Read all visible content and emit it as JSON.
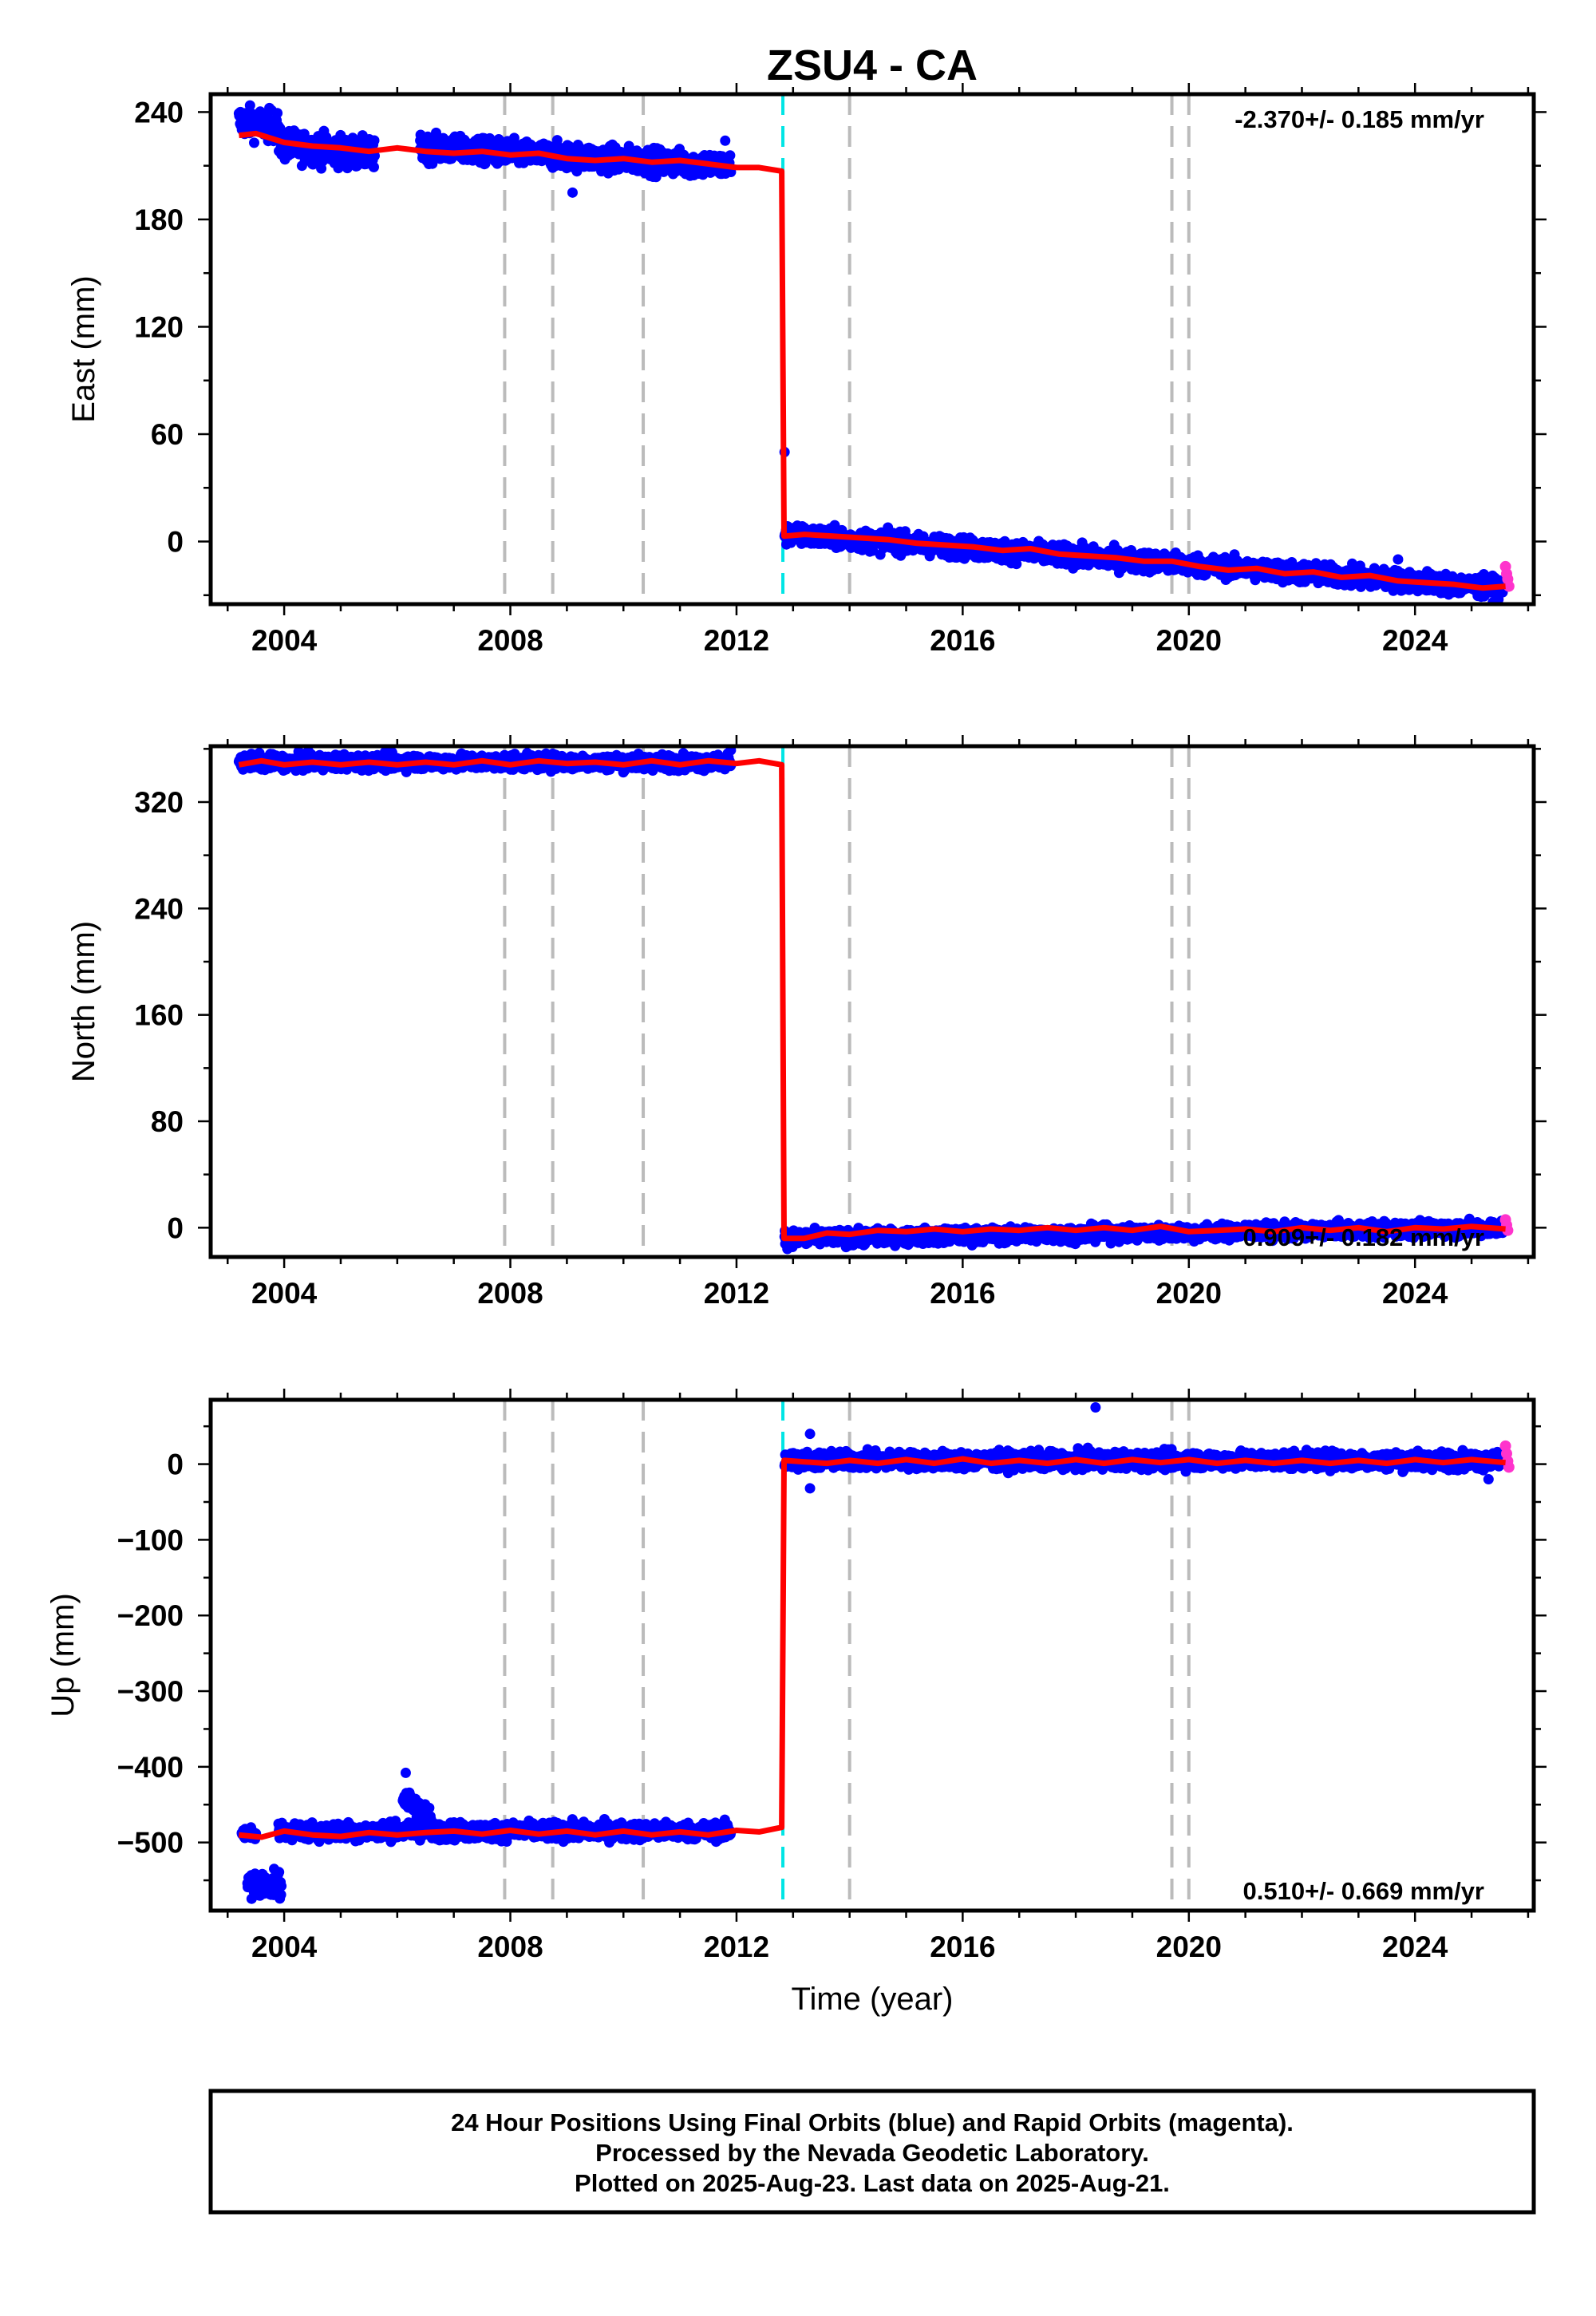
{
  "chart_data": {
    "title": "ZSU4 - CA",
    "type": "scatter",
    "xlabel": "Time (year)",
    "xlim": [
      2002.7,
      2026.1
    ],
    "xticks": [
      2004,
      2008,
      2012,
      2016,
      2020,
      2024
    ],
    "equipment_changes": [
      2007.9,
      2008.75,
      2010.35,
      2014.0,
      2019.7,
      2020.0
    ],
    "earthquake": 2012.82,
    "colors": {
      "final": "#0000ff",
      "rapid": "#ff33cc",
      "model": "#ff0000",
      "equipment": "#bbbbbb",
      "earthquake": "#00e5e5"
    },
    "panels": [
      {
        "id": "east",
        "ylabel": "East (mm)",
        "ylim": [
          -35,
          250
        ],
        "yticks": [
          0,
          60,
          120,
          180,
          240
        ],
        "rate": "-2.370+/- 0.185 mm/yr",
        "rate_position": "top-right",
        "model": [
          [
            2003.2,
            227
          ],
          [
            2003.5,
            228
          ],
          [
            2004.0,
            223
          ],
          [
            2004.5,
            221
          ],
          [
            2005.0,
            220
          ],
          [
            2005.5,
            218
          ],
          [
            2006.0,
            220
          ],
          [
            2006.5,
            218
          ],
          [
            2007.0,
            217
          ],
          [
            2007.5,
            218
          ],
          [
            2008.0,
            216
          ],
          [
            2008.5,
            217
          ],
          [
            2009.0,
            214
          ],
          [
            2009.5,
            213
          ],
          [
            2010.0,
            214
          ],
          [
            2010.5,
            212
          ],
          [
            2011.0,
            213
          ],
          [
            2011.5,
            211
          ],
          [
            2012.0,
            209
          ],
          [
            2012.4,
            209
          ],
          [
            2012.8,
            207
          ],
          [
            2012.84,
            3
          ],
          [
            2013.2,
            4
          ],
          [
            2013.7,
            3
          ],
          [
            2014.2,
            2
          ],
          [
            2014.7,
            1
          ],
          [
            2015.2,
            -1
          ],
          [
            2015.7,
            -2
          ],
          [
            2016.2,
            -3
          ],
          [
            2016.7,
            -5
          ],
          [
            2017.2,
            -4
          ],
          [
            2017.7,
            -7
          ],
          [
            2018.2,
            -8
          ],
          [
            2018.7,
            -9
          ],
          [
            2019.2,
            -11
          ],
          [
            2019.7,
            -11
          ],
          [
            2020.2,
            -14
          ],
          [
            2020.7,
            -16
          ],
          [
            2021.2,
            -15
          ],
          [
            2021.7,
            -18
          ],
          [
            2022.2,
            -17
          ],
          [
            2022.7,
            -20
          ],
          [
            2023.2,
            -19
          ],
          [
            2023.7,
            -22
          ],
          [
            2024.2,
            -23
          ],
          [
            2024.7,
            -24
          ],
          [
            2025.2,
            -26
          ],
          [
            2025.6,
            -25
          ]
        ],
        "final_segments": [
          {
            "t": [
              2003.2,
              2003.9
            ],
            "start": 235,
            "end": 232,
            "scatter": 6
          },
          {
            "t": [
              2003.9,
              2005.6
            ],
            "start": 222,
            "end": 216,
            "scatter": 6
          },
          {
            "t": [
              2006.4,
              2011.9
            ],
            "start": 220,
            "end": 210,
            "scatter": 5
          },
          {
            "t": [
              2012.85,
              2025.55
            ],
            "start": 4,
            "end": -26,
            "scatter": 4
          }
        ],
        "final_outliers": [
          [
            2009.1,
            195
          ],
          [
            2011.8,
            224
          ],
          [
            2012.85,
            50
          ],
          [
            2023.7,
            -10
          ]
        ],
        "rapid": [
          [
            2025.6,
            -14
          ],
          [
            2025.62,
            -18
          ],
          [
            2025.64,
            -21
          ],
          [
            2025.66,
            -25
          ]
        ]
      },
      {
        "id": "north",
        "ylabel": "North (mm)",
        "ylim": [
          -22,
          362
        ],
        "yticks": [
          0,
          80,
          160,
          240,
          320
        ],
        "rate": "0.909+/- 0.182 mm/yr",
        "rate_position": "bottom-right",
        "model": [
          [
            2003.2,
            348
          ],
          [
            2003.6,
            351
          ],
          [
            2004.0,
            348
          ],
          [
            2004.5,
            350
          ],
          [
            2005.0,
            348
          ],
          [
            2005.5,
            350
          ],
          [
            2006.0,
            348
          ],
          [
            2006.5,
            350
          ],
          [
            2007.0,
            348
          ],
          [
            2007.5,
            351
          ],
          [
            2008.0,
            348
          ],
          [
            2008.5,
            351
          ],
          [
            2009.0,
            349
          ],
          [
            2009.5,
            350
          ],
          [
            2010.0,
            348
          ],
          [
            2010.5,
            351
          ],
          [
            2011.0,
            348
          ],
          [
            2011.5,
            351
          ],
          [
            2012.0,
            349
          ],
          [
            2012.4,
            351
          ],
          [
            2012.8,
            348
          ],
          [
            2012.84,
            -8
          ],
          [
            2013.2,
            -8
          ],
          [
            2013.6,
            -4
          ],
          [
            2014.0,
            -5
          ],
          [
            2014.5,
            -2
          ],
          [
            2015.0,
            -3
          ],
          [
            2015.5,
            -1
          ],
          [
            2016.0,
            -3
          ],
          [
            2016.5,
            -1
          ],
          [
            2017.0,
            -2
          ],
          [
            2017.5,
            0
          ],
          [
            2018.0,
            -2
          ],
          [
            2018.5,
            0
          ],
          [
            2019.0,
            -2
          ],
          [
            2019.5,
            1
          ],
          [
            2020.0,
            -3
          ],
          [
            2020.5,
            -2
          ],
          [
            2021.0,
            -1
          ],
          [
            2021.5,
            -3
          ],
          [
            2022.0,
            0
          ],
          [
            2022.5,
            -2
          ],
          [
            2023.0,
            0
          ],
          [
            2023.5,
            -3
          ],
          [
            2024.0,
            0
          ],
          [
            2024.5,
            -1
          ],
          [
            2025.0,
            1
          ],
          [
            2025.6,
            -1
          ]
        ],
        "final_segments": [
          {
            "t": [
              2003.2,
              2011.9
            ],
            "start": 350,
            "end": 350,
            "scatter": 4
          },
          {
            "t": [
              2012.85,
              2025.55
            ],
            "start": -8,
            "end": 0,
            "scatter": 4
          }
        ],
        "final_outliers": [
          [
            2011.9,
            359
          ],
          [
            2012.9,
            -16
          ]
        ],
        "rapid": [
          [
            2025.6,
            6
          ],
          [
            2025.62,
            2
          ],
          [
            2025.64,
            -2
          ]
        ]
      },
      {
        "id": "up",
        "ylabel": "Up (mm)",
        "ylim": [
          -590,
          85
        ],
        "yticks": [
          0,
          -100,
          -200,
          -300,
          -400,
          -500
        ],
        "rate": "0.510+/- 0.669 mm/yr",
        "rate_position": "bottom-right",
        "model": [
          [
            2003.2,
            -490
          ],
          [
            2003.6,
            -493
          ],
          [
            2004.0,
            -485
          ],
          [
            2004.5,
            -490
          ],
          [
            2005.0,
            -492
          ],
          [
            2005.5,
            -487
          ],
          [
            2006.0,
            -490
          ],
          [
            2006.5,
            -487
          ],
          [
            2007.0,
            -485
          ],
          [
            2007.5,
            -489
          ],
          [
            2008.0,
            -484
          ],
          [
            2008.5,
            -489
          ],
          [
            2009.0,
            -485
          ],
          [
            2009.5,
            -490
          ],
          [
            2010.0,
            -485
          ],
          [
            2010.5,
            -490
          ],
          [
            2011.0,
            -486
          ],
          [
            2011.5,
            -490
          ],
          [
            2012.0,
            -484
          ],
          [
            2012.4,
            -486
          ],
          [
            2012.8,
            -480
          ],
          [
            2012.84,
            5
          ],
          [
            2013.2,
            3
          ],
          [
            2013.6,
            1
          ],
          [
            2014.0,
            5
          ],
          [
            2014.5,
            1
          ],
          [
            2015.0,
            6
          ],
          [
            2015.5,
            1
          ],
          [
            2016.0,
            7
          ],
          [
            2016.5,
            1
          ],
          [
            2017.0,
            5
          ],
          [
            2017.5,
            1
          ],
          [
            2018.0,
            6
          ],
          [
            2018.5,
            1
          ],
          [
            2019.0,
            6
          ],
          [
            2019.5,
            2
          ],
          [
            2020.0,
            6
          ],
          [
            2020.5,
            1
          ],
          [
            2021.0,
            5
          ],
          [
            2021.5,
            1
          ],
          [
            2022.0,
            5
          ],
          [
            2022.5,
            1
          ],
          [
            2023.0,
            5
          ],
          [
            2023.5,
            1
          ],
          [
            2024.0,
            6
          ],
          [
            2024.5,
            2
          ],
          [
            2025.0,
            6
          ],
          [
            2025.6,
            2
          ]
        ],
        "final_segments": [
          {
            "t": [
              2003.25,
              2003.5
            ],
            "start": -488,
            "end": -488,
            "scatter": 5
          },
          {
            "t": [
              2003.35,
              2003.95
            ],
            "start": -555,
            "end": -555,
            "scatter": 12
          },
          {
            "t": [
              2003.9,
              2011.9
            ],
            "start": -485,
            "end": -485,
            "scatter": 8
          },
          {
            "t": [
              2006.1,
              2006.6
            ],
            "start": -440,
            "end": -470,
            "scatter": 12
          },
          {
            "t": [
              2012.85,
              2025.55
            ],
            "start": 5,
            "end": 5,
            "scatter": 8
          }
        ],
        "final_outliers": [
          [
            2006.15,
            -408
          ],
          [
            2013.3,
            40
          ],
          [
            2013.3,
            -32
          ],
          [
            2018.35,
            75
          ],
          [
            2025.3,
            -20
          ]
        ],
        "rapid": [
          [
            2025.6,
            24
          ],
          [
            2025.62,
            14
          ],
          [
            2025.64,
            4
          ],
          [
            2025.66,
            -4
          ]
        ]
      }
    ]
  },
  "footer": {
    "line1": "24 Hour Positions Using Final Orbits (blue) and Rapid Orbits (magenta).",
    "line2": "Processed by the Nevada Geodetic Laboratory.",
    "line3": "Plotted on 2025-Aug-23. Last data on 2025-Aug-21."
  }
}
